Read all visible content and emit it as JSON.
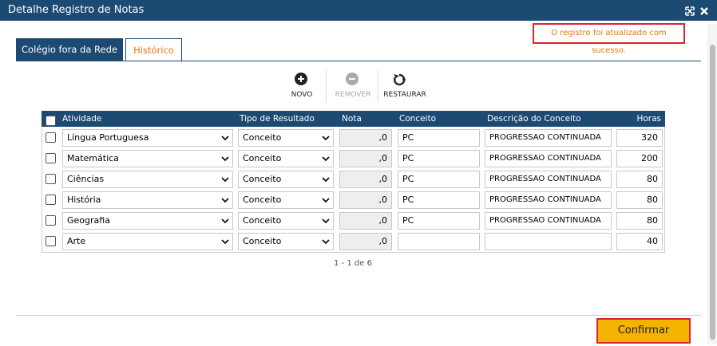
{
  "window": {
    "title": "Detalhe Registro de Notas"
  },
  "message": "O registro foi atualizado com sucesso.",
  "tabs": [
    "Colégio fora da Rede",
    "Histórico"
  ],
  "toolbar": [
    "NOVO",
    "REMOVER",
    "RESTAURAR"
  ],
  "table": {
    "headers": [
      "Atividade",
      "Tipo de Resultado",
      "Nota",
      "Conceito",
      "Descrição do Conceito",
      "Horas"
    ],
    "rows": [
      [
        "Língua Portuguesa",
        "Conceito",
        ",0",
        "PC",
        "PROGRESSAO CONTINUADA",
        320
      ],
      [
        "Matemática",
        "Conceito",
        ",0",
        "PC",
        "PROGRESSAO CONTINUADA",
        200
      ],
      [
        "Ciências",
        "Conceito",
        ",0",
        "PC",
        "PROGRESSAO CONTINUADA",
        80
      ],
      [
        "História",
        "Conceito",
        ",0",
        "PC",
        "PROGRESSAO CONTINUADA",
        80
      ],
      [
        "Geografia",
        "Conceito",
        ",0",
        "PC",
        "PROGRESSAO CONTINUADA",
        80
      ],
      [
        "Arte",
        "Conceito",
        ",0",
        null,
        null,
        40
      ]
    ]
  },
  "pagination": "1 - 1 de 6",
  "confirm": "Confirmar"
}
